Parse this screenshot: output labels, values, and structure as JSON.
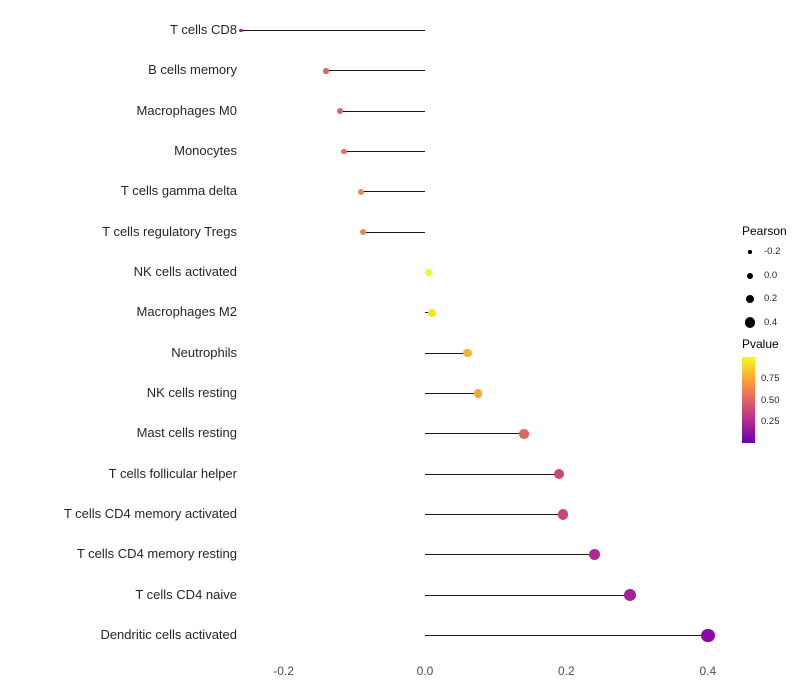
{
  "chart_data": {
    "type": "scatter",
    "subtype": "lollipop",
    "title": "",
    "xlabel": "",
    "ylabel": "",
    "xlim": [
      -0.28,
      0.43
    ],
    "grid": false,
    "x_ticks": [
      "-0.2",
      "0.0",
      "0.2",
      "0.4"
    ],
    "x_tick_values": [
      -0.2,
      0.0,
      0.2,
      0.4
    ],
    "points": [
      {
        "label": "T cells CD8",
        "pearson": -0.26,
        "pvalue": 0.25,
        "color": "#a01a9c"
      },
      {
        "label": "B cells memory",
        "pearson": -0.14,
        "pvalue": 0.52,
        "color": "#e16462"
      },
      {
        "label": "Macrophages M0",
        "pearson": -0.12,
        "pvalue": 0.52,
        "color": "#e16462"
      },
      {
        "label": "Monocytes",
        "pearson": -0.115,
        "pvalue": 0.55,
        "color": "#e66c5c"
      },
      {
        "label": "T cells gamma delta",
        "pearson": -0.09,
        "pvalue": 0.65,
        "color": "#f0834e"
      },
      {
        "label": "T cells regulatory  Tregs",
        "pearson": -0.088,
        "pvalue": 0.65,
        "color": "#f0834e"
      },
      {
        "label": "NK cells activated",
        "pearson": 0.005,
        "pvalue": 0.97,
        "color": "#f0f921"
      },
      {
        "label": "Macrophages M2",
        "pearson": 0.01,
        "pvalue": 0.93,
        "color": "#f4e626"
      },
      {
        "label": "Neutrophils",
        "pearson": 0.06,
        "pvalue": 0.8,
        "color": "#fdb030"
      },
      {
        "label": "NK cells resting",
        "pearson": 0.075,
        "pvalue": 0.78,
        "color": "#fca636"
      },
      {
        "label": "Mast cells resting",
        "pearson": 0.14,
        "pvalue": 0.5,
        "color": "#e0655f"
      },
      {
        "label": "T cells follicular helper",
        "pearson": 0.19,
        "pvalue": 0.45,
        "color": "#cc4778"
      },
      {
        "label": "T cells CD4 memory activated",
        "pearson": 0.195,
        "pvalue": 0.44,
        "color": "#c94478"
      },
      {
        "label": "T cells CD4 memory resting",
        "pearson": 0.24,
        "pvalue": 0.35,
        "color": "#b02a90"
      },
      {
        "label": "T cells CD4 naive",
        "pearson": 0.29,
        "pvalue": 0.3,
        "color": "#a62098"
      },
      {
        "label": "Dendritic cells activated",
        "pearson": 0.4,
        "pvalue": 0.18,
        "color": "#8b0aa5"
      }
    ],
    "legend_size": {
      "title": "Pearson",
      "entries": [
        {
          "label": "-0.2",
          "value": -0.2
        },
        {
          "label": "0.0",
          "value": 0.0
        },
        {
          "label": "0.2",
          "value": 0.2
        },
        {
          "label": "0.4",
          "value": 0.4
        }
      ]
    },
    "legend_color": {
      "title": "Pvalue",
      "range": [
        0.0,
        1.0
      ],
      "ticks": [
        {
          "label": "0.75",
          "value": 0.75
        },
        {
          "label": "0.50",
          "value": 0.5
        },
        {
          "label": "0.25",
          "value": 0.25
        }
      ],
      "gradient": [
        "#f0f921",
        "#fca636",
        "#e16462",
        "#b12a90",
        "#6a00a8"
      ]
    }
  }
}
